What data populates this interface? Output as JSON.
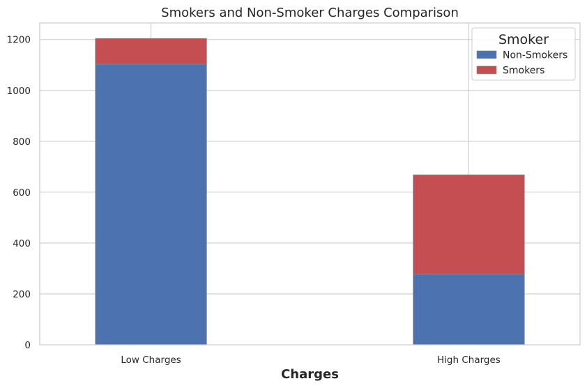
{
  "chart_data": {
    "type": "bar",
    "stacked": true,
    "title": "Smokers and Non-Smoker Charges Comparison",
    "xlabel": "Charges",
    "ylabel": "",
    "categories": [
      "Low Charges",
      "High Charges"
    ],
    "series": [
      {
        "name": "Non-Smokers",
        "values": [
          1103,
          278
        ],
        "color": "#4c72b0"
      },
      {
        "name": "Smokers",
        "values": [
          101,
          390
        ],
        "color": "#c44e52"
      }
    ],
    "ylim": [
      0,
      1265
    ],
    "yticks": [
      0,
      200,
      400,
      600,
      800,
      1000,
      1200
    ],
    "grid": true,
    "legend": {
      "title": "Smoker",
      "placement": "top-right"
    }
  }
}
